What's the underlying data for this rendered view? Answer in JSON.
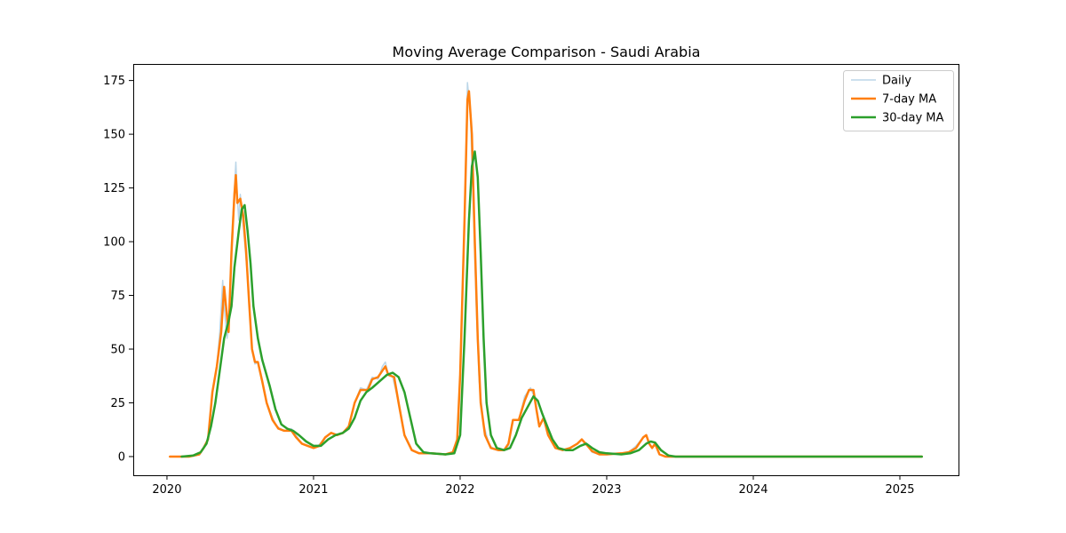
{
  "chart_data": {
    "type": "line",
    "title": "Moving Average Comparison - Saudi Arabia",
    "xlabel": "",
    "ylabel": "",
    "xlim": [
      2019.77,
      2025.4
    ],
    "ylim": [
      -8.7,
      182.7
    ],
    "x_ticks": [
      2020,
      2021,
      2022,
      2023,
      2024,
      2025
    ],
    "x_tick_labels": [
      "2020",
      "2021",
      "2022",
      "2023",
      "2024",
      "2025"
    ],
    "y_ticks": [
      0,
      25,
      50,
      75,
      100,
      125,
      150,
      175
    ],
    "y_tick_labels": [
      "0",
      "25",
      "50",
      "75",
      "100",
      "125",
      "150",
      "175"
    ],
    "grid": false,
    "legend": {
      "position": "top-right",
      "entries": [
        "Daily",
        "7-day MA",
        "30-day MA"
      ]
    },
    "series": [
      {
        "name": "Daily",
        "color": "#1f77b4",
        "opacity": 0.3,
        "width": 1.5,
        "points": [
          [
            2020.02,
            0
          ],
          [
            2020.15,
            0
          ],
          [
            2020.22,
            1
          ],
          [
            2020.25,
            4
          ],
          [
            2020.28,
            8
          ],
          [
            2020.31,
            30
          ],
          [
            2020.34,
            42
          ],
          [
            2020.36,
            58
          ],
          [
            2020.38,
            82
          ],
          [
            2020.39,
            70
          ],
          [
            2020.41,
            55
          ],
          [
            2020.42,
            60
          ],
          [
            2020.44,
            100
          ],
          [
            2020.46,
            125
          ],
          [
            2020.47,
            137
          ],
          [
            2020.48,
            120
          ],
          [
            2020.49,
            110
          ],
          [
            2020.5,
            122
          ],
          [
            2020.51,
            115
          ],
          [
            2020.53,
            100
          ],
          [
            2020.56,
            75
          ],
          [
            2020.58,
            50
          ],
          [
            2020.6,
            43
          ],
          [
            2020.62,
            44
          ],
          [
            2020.65,
            35
          ],
          [
            2020.68,
            25
          ],
          [
            2020.72,
            18
          ],
          [
            2020.75,
            14
          ],
          [
            2020.8,
            12
          ],
          [
            2020.85,
            13
          ],
          [
            2020.88,
            10
          ],
          [
            2020.92,
            6
          ],
          [
            2020.96,
            5
          ],
          [
            2021.0,
            4
          ],
          [
            2021.03,
            5
          ],
          [
            2021.07,
            8
          ],
          [
            2021.12,
            11
          ],
          [
            2021.16,
            10
          ],
          [
            2021.2,
            11
          ],
          [
            2021.24,
            14
          ],
          [
            2021.28,
            25
          ],
          [
            2021.32,
            32
          ],
          [
            2021.36,
            31
          ],
          [
            2021.4,
            37
          ],
          [
            2021.44,
            36
          ],
          [
            2021.47,
            42
          ],
          [
            2021.49,
            44
          ],
          [
            2021.51,
            38
          ],
          [
            2021.54,
            37
          ],
          [
            2021.58,
            25
          ],
          [
            2021.62,
            10
          ],
          [
            2021.67,
            3
          ],
          [
            2021.72,
            1.5
          ],
          [
            2021.8,
            1.5
          ],
          [
            2021.9,
            1
          ],
          [
            2021.95,
            2
          ],
          [
            2021.98,
            8
          ],
          [
            2022.0,
            40
          ],
          [
            2022.03,
            110
          ],
          [
            2022.05,
            174
          ],
          [
            2022.07,
            160
          ],
          [
            2022.09,
            115
          ],
          [
            2022.11,
            70
          ],
          [
            2022.13,
            35
          ],
          [
            2022.16,
            15
          ],
          [
            2022.2,
            5
          ],
          [
            2022.25,
            3
          ],
          [
            2022.3,
            3
          ],
          [
            2022.33,
            5
          ],
          [
            2022.36,
            17
          ],
          [
            2022.4,
            17
          ],
          [
            2022.44,
            28
          ],
          [
            2022.48,
            32
          ],
          [
            2022.51,
            27
          ],
          [
            2022.54,
            14
          ],
          [
            2022.57,
            18
          ],
          [
            2022.6,
            10
          ],
          [
            2022.65,
            4
          ],
          [
            2022.7,
            3
          ],
          [
            2022.75,
            4
          ],
          [
            2022.8,
            6
          ],
          [
            2022.83,
            8
          ],
          [
            2022.87,
            5
          ],
          [
            2022.9,
            2
          ],
          [
            2022.95,
            1
          ],
          [
            2023.0,
            1
          ],
          [
            2023.1,
            1.5
          ],
          [
            2023.15,
            2
          ],
          [
            2023.2,
            5
          ],
          [
            2023.25,
            9
          ],
          [
            2023.27,
            10
          ],
          [
            2023.29,
            6
          ],
          [
            2023.31,
            4
          ],
          [
            2023.33,
            6
          ],
          [
            2023.36,
            1
          ],
          [
            2023.4,
            0
          ],
          [
            2024.0,
            0
          ],
          [
            2025.15,
            0
          ]
        ]
      },
      {
        "name": "7-day MA",
        "color": "#ff7f0e",
        "opacity": 1,
        "width": 2.5,
        "points": [
          [
            2020.02,
            0
          ],
          [
            2020.15,
            0
          ],
          [
            2020.22,
            1
          ],
          [
            2020.25,
            4
          ],
          [
            2020.28,
            8
          ],
          [
            2020.31,
            30
          ],
          [
            2020.34,
            42
          ],
          [
            2020.37,
            58
          ],
          [
            2020.39,
            79
          ],
          [
            2020.41,
            65
          ],
          [
            2020.42,
            58
          ],
          [
            2020.44,
            95
          ],
          [
            2020.46,
            122
          ],
          [
            2020.47,
            131
          ],
          [
            2020.48,
            118
          ],
          [
            2020.5,
            120
          ],
          [
            2020.52,
            112
          ],
          [
            2020.54,
            95
          ],
          [
            2020.56,
            72
          ],
          [
            2020.58,
            50
          ],
          [
            2020.6,
            44
          ],
          [
            2020.62,
            44
          ],
          [
            2020.65,
            35
          ],
          [
            2020.68,
            25
          ],
          [
            2020.72,
            17
          ],
          [
            2020.76,
            13
          ],
          [
            2020.8,
            12
          ],
          [
            2020.85,
            12
          ],
          [
            2020.88,
            9
          ],
          [
            2020.92,
            6
          ],
          [
            2020.96,
            5
          ],
          [
            2021.0,
            4
          ],
          [
            2021.04,
            5
          ],
          [
            2021.08,
            9
          ],
          [
            2021.12,
            11
          ],
          [
            2021.16,
            10
          ],
          [
            2021.2,
            11
          ],
          [
            2021.24,
            14
          ],
          [
            2021.28,
            25
          ],
          [
            2021.32,
            31
          ],
          [
            2021.37,
            31
          ],
          [
            2021.4,
            36
          ],
          [
            2021.44,
            37
          ],
          [
            2021.47,
            40
          ],
          [
            2021.49,
            42
          ],
          [
            2021.51,
            38
          ],
          [
            2021.55,
            37
          ],
          [
            2021.58,
            25
          ],
          [
            2021.62,
            10
          ],
          [
            2021.67,
            3
          ],
          [
            2021.72,
            1.5
          ],
          [
            2021.8,
            1.5
          ],
          [
            2021.9,
            1
          ],
          [
            2021.95,
            2
          ],
          [
            2021.98,
            8
          ],
          [
            2022.0,
            38
          ],
          [
            2022.03,
            110
          ],
          [
            2022.05,
            166
          ],
          [
            2022.06,
            170
          ],
          [
            2022.08,
            150
          ],
          [
            2022.1,
            100
          ],
          [
            2022.12,
            55
          ],
          [
            2022.14,
            25
          ],
          [
            2022.17,
            10
          ],
          [
            2022.21,
            4
          ],
          [
            2022.26,
            3
          ],
          [
            2022.3,
            3
          ],
          [
            2022.33,
            6
          ],
          [
            2022.36,
            17
          ],
          [
            2022.4,
            17
          ],
          [
            2022.44,
            26
          ],
          [
            2022.47,
            31
          ],
          [
            2022.5,
            31
          ],
          [
            2022.52,
            22
          ],
          [
            2022.54,
            14
          ],
          [
            2022.57,
            18
          ],
          [
            2022.6,
            10
          ],
          [
            2022.65,
            4
          ],
          [
            2022.7,
            3
          ],
          [
            2022.75,
            4
          ],
          [
            2022.8,
            6
          ],
          [
            2022.83,
            8
          ],
          [
            2022.87,
            5
          ],
          [
            2022.9,
            2.5
          ],
          [
            2022.95,
            1
          ],
          [
            2023.0,
            1
          ],
          [
            2023.1,
            1.5
          ],
          [
            2023.15,
            2
          ],
          [
            2023.2,
            4
          ],
          [
            2023.25,
            9
          ],
          [
            2023.27,
            10
          ],
          [
            2023.29,
            6
          ],
          [
            2023.31,
            4
          ],
          [
            2023.33,
            6
          ],
          [
            2023.36,
            1
          ],
          [
            2023.4,
            0
          ],
          [
            2024.0,
            0
          ],
          [
            2025.15,
            0
          ]
        ]
      },
      {
        "name": "30-day MA",
        "color": "#2ca02c",
        "opacity": 1,
        "width": 2.5,
        "points": [
          [
            2020.1,
            0
          ],
          [
            2020.18,
            0.5
          ],
          [
            2020.23,
            2
          ],
          [
            2020.27,
            6
          ],
          [
            2020.3,
            14
          ],
          [
            2020.33,
            25
          ],
          [
            2020.36,
            40
          ],
          [
            2020.39,
            55
          ],
          [
            2020.42,
            63
          ],
          [
            2020.44,
            70
          ],
          [
            2020.46,
            88
          ],
          [
            2020.49,
            105
          ],
          [
            2020.51,
            115
          ],
          [
            2020.53,
            117
          ],
          [
            2020.55,
            105
          ],
          [
            2020.57,
            90
          ],
          [
            2020.59,
            70
          ],
          [
            2020.62,
            55
          ],
          [
            2020.65,
            45
          ],
          [
            2020.7,
            33
          ],
          [
            2020.74,
            22
          ],
          [
            2020.78,
            15
          ],
          [
            2020.82,
            13
          ],
          [
            2020.86,
            12
          ],
          [
            2020.9,
            10
          ],
          [
            2020.95,
            7
          ],
          [
            2021.0,
            5
          ],
          [
            2021.05,
            5
          ],
          [
            2021.1,
            8
          ],
          [
            2021.15,
            10
          ],
          [
            2021.2,
            11
          ],
          [
            2021.24,
            13
          ],
          [
            2021.28,
            18
          ],
          [
            2021.32,
            26
          ],
          [
            2021.36,
            30
          ],
          [
            2021.4,
            32
          ],
          [
            2021.45,
            35
          ],
          [
            2021.5,
            38
          ],
          [
            2021.54,
            39
          ],
          [
            2021.58,
            37
          ],
          [
            2021.62,
            30
          ],
          [
            2021.66,
            18
          ],
          [
            2021.7,
            6
          ],
          [
            2021.75,
            2
          ],
          [
            2021.8,
            1.5
          ],
          [
            2021.9,
            1
          ],
          [
            2021.96,
            1.5
          ],
          [
            2022.0,
            10
          ],
          [
            2022.03,
            55
          ],
          [
            2022.06,
            110
          ],
          [
            2022.08,
            135
          ],
          [
            2022.1,
            142
          ],
          [
            2022.12,
            130
          ],
          [
            2022.14,
            95
          ],
          [
            2022.16,
            55
          ],
          [
            2022.18,
            25
          ],
          [
            2022.21,
            10
          ],
          [
            2022.25,
            4
          ],
          [
            2022.3,
            3
          ],
          [
            2022.34,
            4
          ],
          [
            2022.38,
            10
          ],
          [
            2022.42,
            18
          ],
          [
            2022.46,
            23
          ],
          [
            2022.5,
            28
          ],
          [
            2022.53,
            26
          ],
          [
            2022.56,
            20
          ],
          [
            2022.6,
            13
          ],
          [
            2022.63,
            8
          ],
          [
            2022.67,
            4
          ],
          [
            2022.72,
            3
          ],
          [
            2022.77,
            3
          ],
          [
            2022.82,
            5
          ],
          [
            2022.86,
            6
          ],
          [
            2022.9,
            4
          ],
          [
            2022.95,
            2
          ],
          [
            2023.0,
            1.5
          ],
          [
            2023.1,
            1
          ],
          [
            2023.16,
            1.5
          ],
          [
            2023.22,
            3
          ],
          [
            2023.27,
            6
          ],
          [
            2023.3,
            7
          ],
          [
            2023.33,
            6.5
          ],
          [
            2023.37,
            3
          ],
          [
            2023.42,
            0.5
          ],
          [
            2023.47,
            0
          ],
          [
            2024.0,
            0
          ],
          [
            2025.15,
            0
          ]
        ]
      }
    ]
  }
}
